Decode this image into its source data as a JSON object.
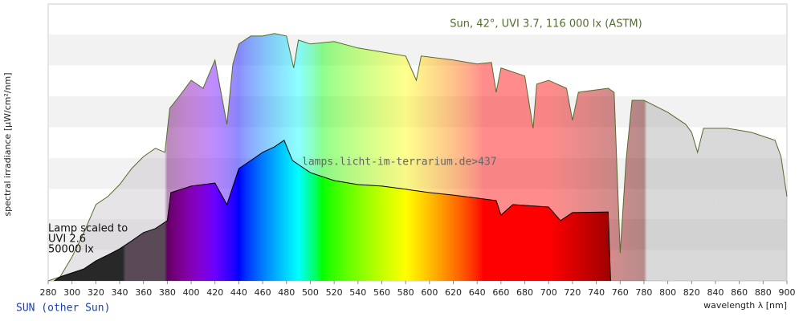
{
  "chart_data": {
    "type": "area",
    "ylabel": "spectral irradiance [µW/cm²/nm]",
    "xlabel": "wavelength λ [nm]",
    "annotations": [
      "Sun, 42°, UVI 3.7, 116 000 lx (ASTM)",
      "lamps.licht-im-terrarium.de>437",
      "Lamp scaled to",
      "UVI 2.6",
      "50000 lx"
    ],
    "footer": "SUN (other Sun)",
    "xlim": [
      280,
      900
    ],
    "xticks": [
      280,
      300,
      320,
      340,
      360,
      380,
      400,
      420,
      440,
      460,
      480,
      500,
      520,
      540,
      560,
      580,
      600,
      620,
      640,
      660,
      680,
      700,
      720,
      740,
      760,
      780,
      800,
      820,
      840,
      860,
      880,
      900
    ],
    "ylim": [
      0,
      90
    ],
    "series": [
      {
        "color": "#556b2f",
        "fill_opacity": 0.45,
        "x": [
          280,
          290,
          300,
          310,
          320,
          330,
          340,
          350,
          360,
          370,
          378,
          382,
          390,
          400,
          410,
          420,
          430,
          435,
          440,
          450,
          460,
          470,
          480,
          486,
          490,
          500,
          520,
          540,
          560,
          580,
          589,
          593,
          620,
          640,
          652,
          656,
          660,
          680,
          687,
          690,
          700,
          715,
          720,
          725,
          750,
          755,
          760,
          765,
          770,
          780,
          800,
          815,
          820,
          825,
          830,
          850,
          870,
          890,
          895,
          900
        ],
        "values": [
          0,
          1.3,
          7.8,
          15.7,
          24.8,
          27.4,
          31.3,
          36.5,
          40.4,
          43.1,
          41.8,
          56.1,
          60,
          65.2,
          62.6,
          71.8,
          50.9,
          70.5,
          77,
          79.6,
          79.6,
          80.4,
          79.6,
          69.2,
          78.3,
          77,
          77.8,
          75.7,
          74.4,
          73.1,
          65.2,
          73.1,
          71.8,
          70.5,
          71,
          61.3,
          69.2,
          66.6,
          49.6,
          64,
          65.2,
          62.6,
          52.2,
          61.3,
          62.6,
          61.3,
          9.1,
          39.2,
          58.7,
          58.7,
          54.8,
          50.9,
          48.3,
          41.8,
          49.6,
          49.6,
          48.3,
          45.7,
          40.4,
          27.4
        ]
      },
      {
        "color": "#000000",
        "fill_opacity": 1,
        "x": [
          285,
          290,
          300,
          310,
          320,
          330,
          340,
          350,
          360,
          370,
          380,
          383,
          400,
          420,
          430,
          440,
          450,
          460,
          470,
          478,
          485,
          500,
          520,
          540,
          560,
          580,
          600,
          620,
          640,
          656,
          660,
          670,
          700,
          710,
          720,
          750,
          752
        ],
        "values": [
          0,
          1.3,
          2.6,
          3.9,
          6.5,
          8.4,
          10.4,
          13,
          15.7,
          17,
          19.6,
          28.7,
          30.8,
          31.8,
          24.8,
          36.5,
          39.1,
          41.8,
          43.6,
          45.7,
          39.1,
          35.2,
          32.6,
          31.3,
          30.8,
          29.8,
          28.7,
          27.9,
          26.9,
          26.1,
          21.4,
          24.8,
          24,
          19.6,
          22.2,
          22.4,
          0
        ]
      }
    ]
  }
}
